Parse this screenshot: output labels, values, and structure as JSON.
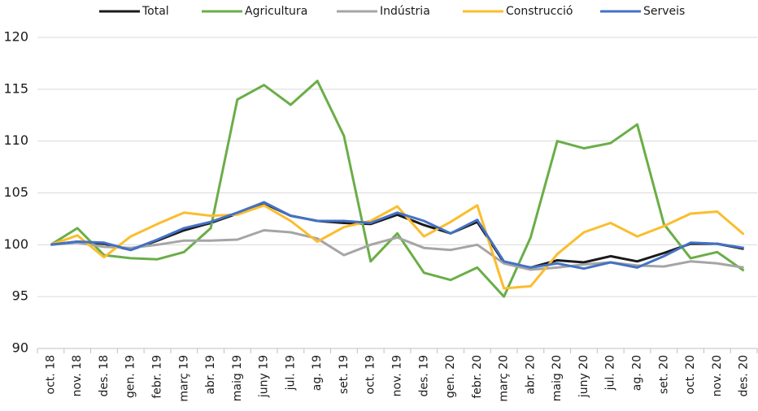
{
  "chart_data": {
    "type": "line",
    "categories": [
      "oct. 18",
      "nov. 18",
      "des. 18",
      "gen. 19",
      "febr. 19",
      "març 19",
      "abr. 19",
      "maig 19",
      "juny 19",
      "jul. 19",
      "ag. 19",
      "set. 19",
      "oct. 19",
      "nov. 19",
      "des. 19",
      "gen. 20",
      "febr. 20",
      "març 20",
      "abr. 20",
      "maig 20",
      "juny 20",
      "jul. 20",
      "ag. 20",
      "set. 20",
      "oct. 20",
      "nov. 20",
      "des. 20"
    ],
    "series": [
      {
        "name": "Total",
        "color": "#1a1a1a",
        "values": [
          100,
          100.3,
          100.1,
          99.5,
          100.4,
          101.4,
          102.1,
          103.0,
          104.0,
          102.8,
          102.3,
          102.1,
          102.0,
          102.9,
          101.9,
          101.1,
          102.2,
          98.3,
          97.8,
          98.5,
          98.3,
          98.9,
          98.4,
          99.2,
          100.1,
          100.1,
          99.6
        ]
      },
      {
        "name": "Agricultura",
        "color": "#6aae47",
        "values": [
          100,
          101.6,
          99.0,
          98.7,
          98.6,
          99.3,
          101.6,
          114.0,
          115.4,
          113.5,
          115.8,
          110.5,
          98.4,
          101.1,
          97.3,
          96.6,
          97.8,
          95.0,
          100.7,
          110.0,
          109.3,
          109.8,
          111.6,
          102.0,
          98.7,
          99.3,
          97.5
        ]
      },
      {
        "name": "Indústria",
        "color": "#a5a5a5",
        "values": [
          100,
          100.2,
          99.8,
          99.7,
          100.0,
          100.4,
          100.4,
          100.5,
          101.4,
          101.2,
          100.6,
          99.0,
          100.0,
          100.7,
          99.7,
          99.5,
          100.0,
          98.2,
          97.6,
          97.8,
          98.1,
          98.3,
          98.0,
          97.9,
          98.4,
          98.2,
          97.8
        ]
      },
      {
        "name": "Construcció",
        "color": "#fbbd2d",
        "values": [
          100,
          100.9,
          98.8,
          100.8,
          102.0,
          103.1,
          102.8,
          102.9,
          103.8,
          102.3,
          100.3,
          101.7,
          102.3,
          103.7,
          100.8,
          102.2,
          103.8,
          95.8,
          96.0,
          99.1,
          101.2,
          102.1,
          100.8,
          101.8,
          103.0,
          103.2,
          101.0
        ]
      },
      {
        "name": "Serveis",
        "color": "#4472c4",
        "values": [
          100,
          100.3,
          100.2,
          99.5,
          100.5,
          101.6,
          102.2,
          103.1,
          104.1,
          102.8,
          102.3,
          102.3,
          102.1,
          103.1,
          102.3,
          101.1,
          102.4,
          98.4,
          97.8,
          98.2,
          97.7,
          98.3,
          97.8,
          98.9,
          100.2,
          100.1,
          99.7
        ]
      }
    ],
    "ylim": [
      90,
      120
    ],
    "yticks": [
      90,
      95,
      100,
      105,
      110,
      115,
      120
    ],
    "grid": true
  }
}
